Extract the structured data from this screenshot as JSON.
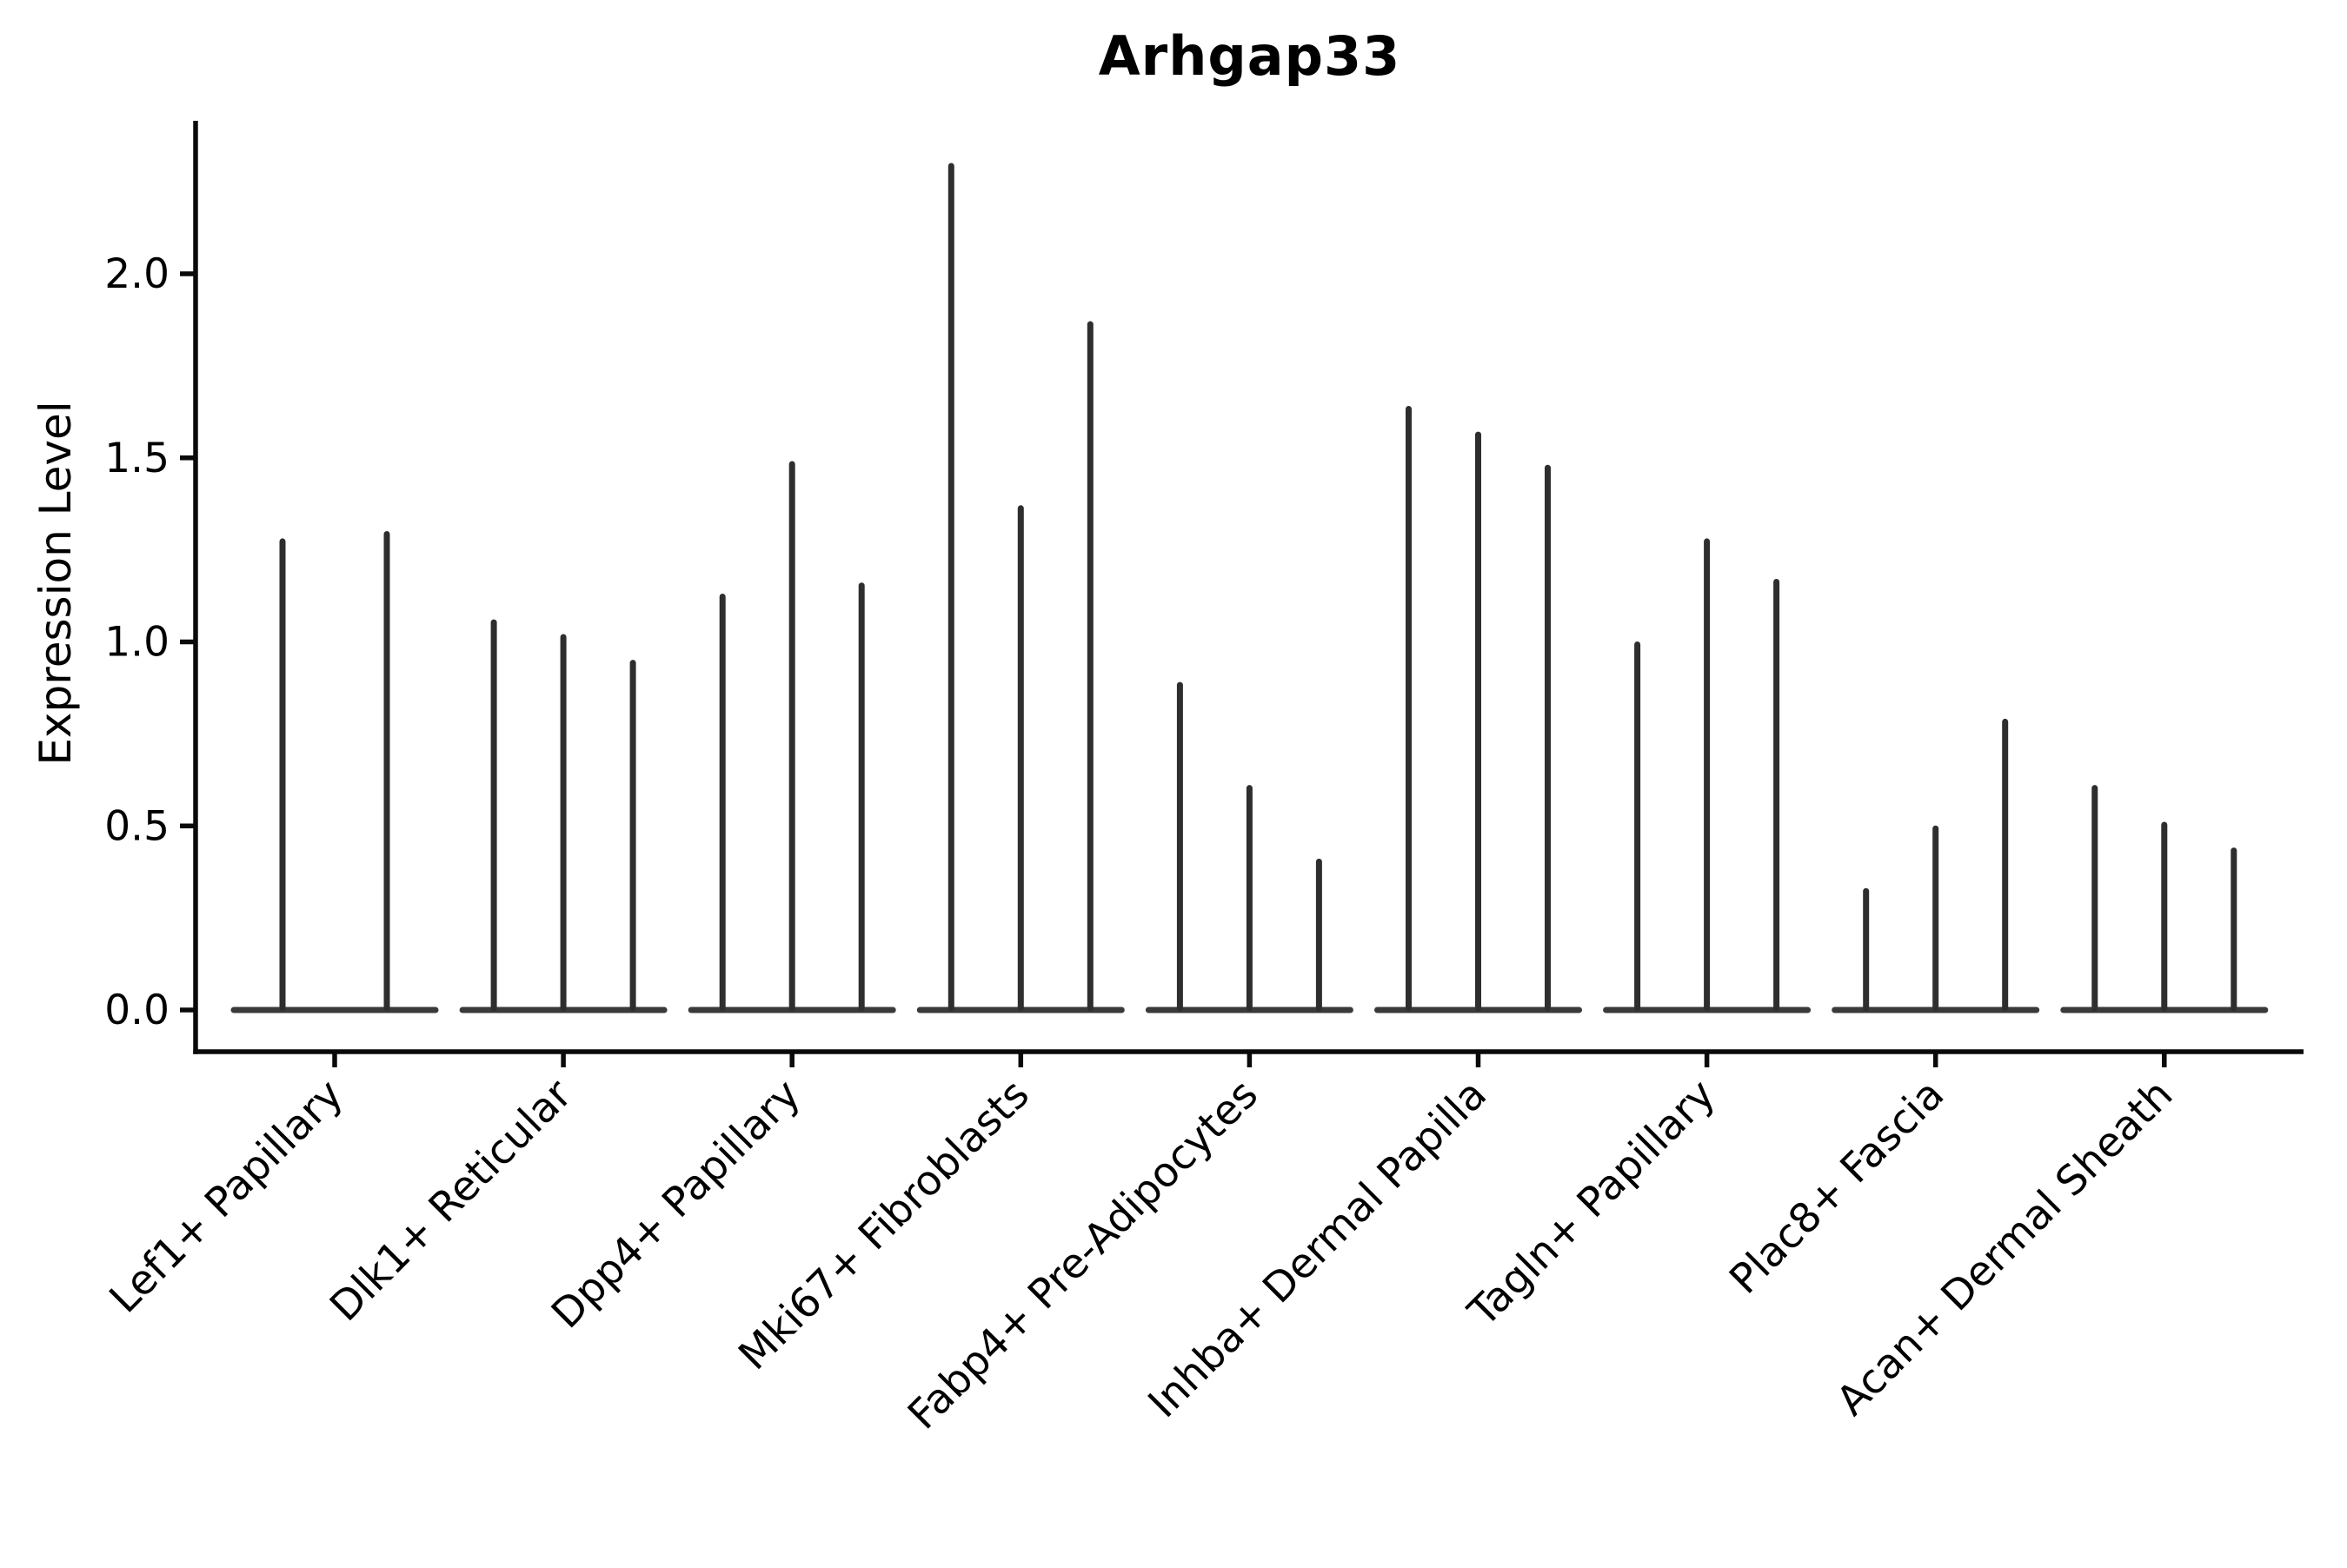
{
  "chart_data": {
    "type": "violin",
    "title": "Arhgap33",
    "ylabel": "Expression Level",
    "xlabel": "",
    "grid": false,
    "legend": null,
    "ylim": [
      0,
      2.42
    ],
    "yticks": [
      0.0,
      0.5,
      1.0,
      1.5,
      2.0
    ],
    "ytick_labels": [
      "0.0",
      "0.5",
      "1.0",
      "1.5",
      "2.0"
    ],
    "categories": [
      "Lef1+ Papillary",
      "Dlk1+ Reticular",
      "Dpp4+ Papillary",
      "Mki67+ Fibroblasts",
      "Fabp4+ Pre-Adipocytes",
      "Inhba+ Dermal Papilla",
      "Tagln+ Papillary",
      "Plac8+ Fascia",
      "Acan+ Dermal Sheath"
    ],
    "groups": [
      {
        "label": "Lef1+ Papillary",
        "violin_max_values": [
          1.28,
          1.3
        ]
      },
      {
        "label": "Dlk1+ Reticular",
        "violin_max_values": [
          1.06,
          1.02,
          0.95
        ]
      },
      {
        "label": "Dpp4+ Papillary",
        "violin_max_values": [
          1.13,
          1.49,
          1.16
        ]
      },
      {
        "label": "Mki67+ Fibroblasts",
        "violin_max_values": [
          2.3,
          1.37,
          1.87
        ]
      },
      {
        "label": "Fabp4+ Pre-Adipocytes",
        "violin_max_values": [
          0.89,
          0.61,
          0.41
        ]
      },
      {
        "label": "Inhba+ Dermal Papilla",
        "violin_max_values": [
          1.64,
          1.57,
          1.48
        ]
      },
      {
        "label": "Tagln+ Papillary",
        "violin_max_values": [
          1.0,
          1.28,
          1.17
        ]
      },
      {
        "label": "Plac8+ Fascia",
        "violin_max_values": [
          0.33,
          0.5,
          0.79
        ]
      },
      {
        "label": "Acan+ Dermal Sheath",
        "violin_max_values": [
          0.61,
          0.51,
          0.44
        ]
      }
    ],
    "description": "Violin plot of Arhgap33 expression; each cluster shows very thin spike-like violins rising from a flat base at 0"
  },
  "colors": {
    "background": "#ffffff",
    "spine": "#0a0a0a",
    "violin": "#2e2e2e",
    "violin_base": "#3a3a3a",
    "text": "#000000"
  }
}
